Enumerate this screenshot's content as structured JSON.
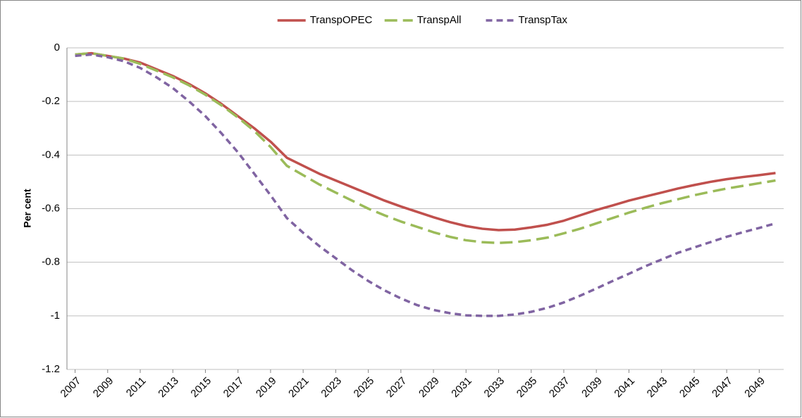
{
  "chart_data": {
    "type": "line",
    "y_label": "Per cent",
    "x": [
      2007,
      2008,
      2009,
      2010,
      2011,
      2012,
      2013,
      2014,
      2015,
      2016,
      2017,
      2018,
      2019,
      2020,
      2021,
      2022,
      2023,
      2024,
      2025,
      2026,
      2027,
      2028,
      2029,
      2030,
      2031,
      2032,
      2033,
      2034,
      2035,
      2036,
      2037,
      2038,
      2039,
      2040,
      2041,
      2042,
      2043,
      2044,
      2045,
      2046,
      2047,
      2048,
      2049,
      2050
    ],
    "xlim": [
      2006.5,
      2050.5
    ],
    "xticks": [
      2007,
      2009,
      2011,
      2013,
      2015,
      2017,
      2019,
      2021,
      2023,
      2025,
      2027,
      2029,
      2031,
      2033,
      2035,
      2037,
      2039,
      2041,
      2043,
      2045,
      2047,
      2049
    ],
    "ylim": [
      -1.2,
      0
    ],
    "yticks": [
      0,
      -0.2,
      -0.4,
      -0.6,
      -0.8,
      -1,
      -1.2
    ],
    "grid": true,
    "legend": "top",
    "series": [
      {
        "name": "TranspOPEC",
        "color": "#c0504d",
        "dash": "solid",
        "values": [
          -0.025,
          -0.02,
          -0.03,
          -0.04,
          -0.055,
          -0.08,
          -0.105,
          -0.135,
          -0.17,
          -0.21,
          -0.255,
          -0.3,
          -0.35,
          -0.41,
          -0.44,
          -0.47,
          -0.495,
          -0.52,
          -0.545,
          -0.57,
          -0.592,
          -0.612,
          -0.632,
          -0.65,
          -0.665,
          -0.675,
          -0.68,
          -0.678,
          -0.67,
          -0.66,
          -0.645,
          -0.625,
          -0.605,
          -0.588,
          -0.57,
          -0.555,
          -0.54,
          -0.525,
          -0.512,
          -0.5,
          -0.49,
          -0.482,
          -0.475,
          -0.467
        ]
      },
      {
        "name": "TranspAll",
        "color": "#9bbb59",
        "dash": "long",
        "values": [
          -0.025,
          -0.02,
          -0.03,
          -0.04,
          -0.06,
          -0.085,
          -0.11,
          -0.14,
          -0.175,
          -0.215,
          -0.26,
          -0.31,
          -0.37,
          -0.44,
          -0.475,
          -0.51,
          -0.54,
          -0.57,
          -0.6,
          -0.625,
          -0.648,
          -0.668,
          -0.688,
          -0.705,
          -0.718,
          -0.725,
          -0.728,
          -0.725,
          -0.718,
          -0.708,
          -0.692,
          -0.675,
          -0.655,
          -0.635,
          -0.615,
          -0.597,
          -0.58,
          -0.565,
          -0.55,
          -0.537,
          -0.525,
          -0.515,
          -0.505,
          -0.495
        ]
      },
      {
        "name": "TranspTax",
        "color": "#8064a2",
        "dash": "short",
        "values": [
          -0.03,
          -0.025,
          -0.035,
          -0.05,
          -0.075,
          -0.11,
          -0.15,
          -0.2,
          -0.255,
          -0.32,
          -0.39,
          -0.47,
          -0.55,
          -0.635,
          -0.69,
          -0.74,
          -0.785,
          -0.83,
          -0.87,
          -0.905,
          -0.935,
          -0.96,
          -0.978,
          -0.99,
          -0.998,
          -1.0,
          -1.0,
          -0.995,
          -0.985,
          -0.97,
          -0.95,
          -0.925,
          -0.898,
          -0.87,
          -0.843,
          -0.815,
          -0.79,
          -0.765,
          -0.745,
          -0.725,
          -0.705,
          -0.688,
          -0.672,
          -0.655
        ]
      }
    ]
  }
}
